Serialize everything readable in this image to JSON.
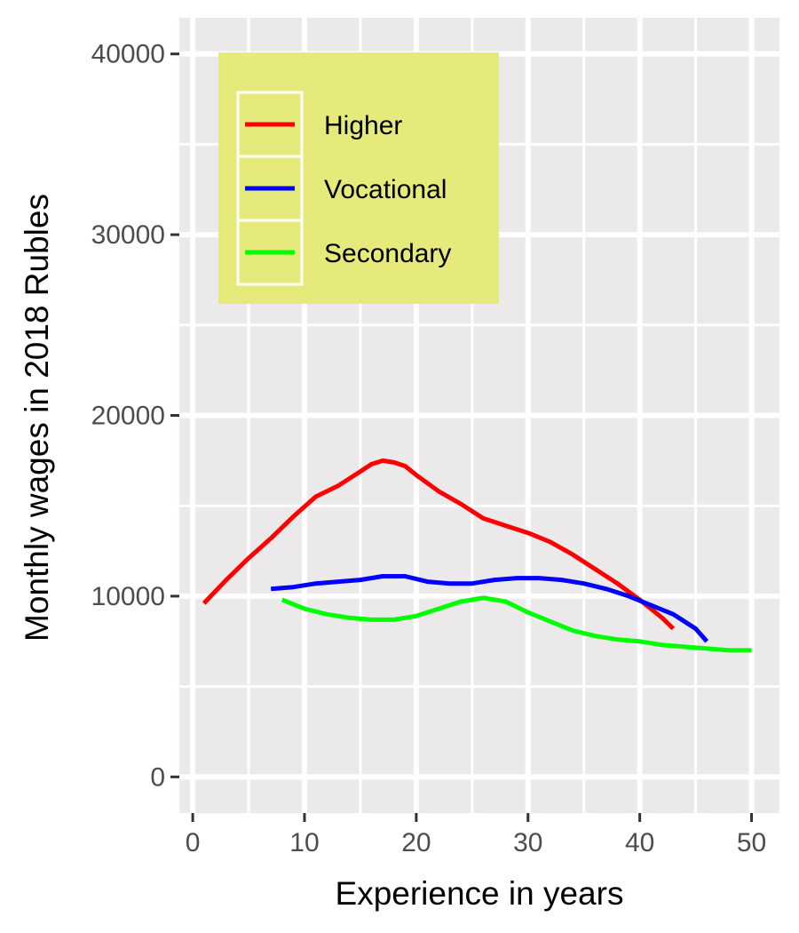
{
  "chart_data": {
    "type": "line",
    "title": "",
    "xlabel": "Experience in years",
    "ylabel": "Monthly wages in 2018 Rubles",
    "xlim": [
      -1.2,
      52.5
    ],
    "ylim": [
      -2000,
      42000
    ],
    "x_ticks": [
      0,
      10,
      20,
      30,
      40,
      50
    ],
    "y_ticks": [
      0,
      10000,
      20000,
      30000,
      40000
    ],
    "x_tick_labels": [
      "0",
      "10",
      "20",
      "30",
      "40",
      "50"
    ],
    "y_tick_labels": [
      "0",
      "10000",
      "20000",
      "30000",
      "40000"
    ],
    "grid": true,
    "panel_background": "#ebe9ea",
    "grid_color": "#ffffff",
    "legend": {
      "placement": "top-left",
      "background": "#e5ea7a"
    },
    "series": [
      {
        "name": "Higher",
        "color": "#ff0000",
        "x": [
          1,
          3,
          5,
          7,
          9,
          11,
          13,
          15,
          16,
          17,
          18,
          19,
          20,
          22,
          24,
          26,
          28,
          30,
          32,
          34,
          36,
          38,
          40,
          42,
          43
        ],
        "y": [
          9600,
          10900,
          12100,
          13200,
          14400,
          15500,
          16100,
          16900,
          17300,
          17500,
          17400,
          17200,
          16700,
          15800,
          15100,
          14300,
          13900,
          13500,
          13000,
          12300,
          11500,
          10700,
          9800,
          8800,
          8200
        ]
      },
      {
        "name": "Vocational",
        "color": "#0000ff",
        "x": [
          7,
          9,
          11,
          13,
          15,
          17,
          19,
          21,
          23,
          25,
          27,
          29,
          31,
          33,
          35,
          37,
          39,
          41,
          43,
          45,
          46
        ],
        "y": [
          10400,
          10500,
          10700,
          10800,
          10900,
          11100,
          11100,
          10800,
          10700,
          10700,
          10900,
          11000,
          11000,
          10900,
          10700,
          10400,
          10000,
          9500,
          9000,
          8200,
          7500
        ]
      },
      {
        "name": "Secondary",
        "color": "#00ff00",
        "x": [
          8,
          10,
          12,
          14,
          16,
          18,
          20,
          22,
          24,
          26,
          28,
          30,
          32,
          34,
          36,
          38,
          40,
          42,
          44,
          46,
          48,
          50
        ],
        "y": [
          9800,
          9300,
          9000,
          8800,
          8700,
          8700,
          8900,
          9300,
          9700,
          9900,
          9700,
          9100,
          8600,
          8100,
          7800,
          7600,
          7500,
          7300,
          7200,
          7100,
          7000,
          7000
        ]
      }
    ]
  }
}
